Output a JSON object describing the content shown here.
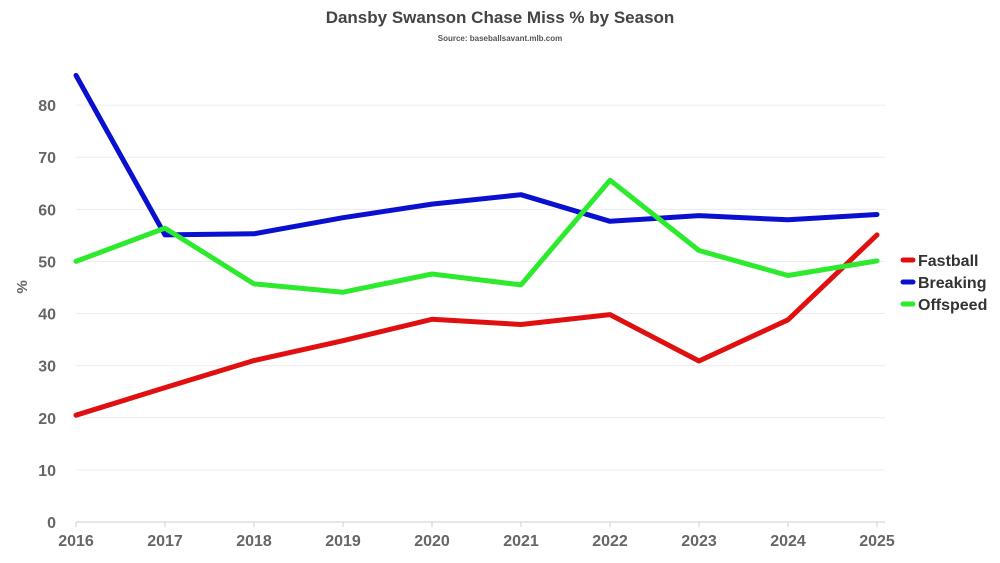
{
  "chart_data": {
    "type": "line",
    "title": "Dansby Swanson Chase Miss % by Season",
    "subtitle": "Source: baseballsavant.mlb.com",
    "xlabel": "",
    "ylabel": "%",
    "x": [
      "2016",
      "2017",
      "2018",
      "2019",
      "2020",
      "2021",
      "2022",
      "2023",
      "2024",
      "2025"
    ],
    "ylim": [
      0,
      90
    ],
    "yticks": [
      0,
      10,
      20,
      30,
      40,
      50,
      60,
      70,
      80
    ],
    "grid": true,
    "legend_position": "right",
    "series": [
      {
        "name": "Fastball",
        "color": "#e01010",
        "values": [
          20.5,
          25.8,
          31.0,
          34.8,
          38.9,
          37.9,
          39.8,
          30.9,
          38.8,
          55.1
        ]
      },
      {
        "name": "Breaking",
        "color": "#0a10d0",
        "values": [
          85.7,
          55.1,
          55.3,
          58.4,
          61.0,
          62.8,
          57.7,
          58.8,
          58.0,
          59.0
        ]
      },
      {
        "name": "Offspeed",
        "color": "#2eea2e",
        "values": [
          50.0,
          56.4,
          45.7,
          44.1,
          47.6,
          45.5,
          65.6,
          52.1,
          47.3,
          50.1
        ]
      }
    ]
  }
}
